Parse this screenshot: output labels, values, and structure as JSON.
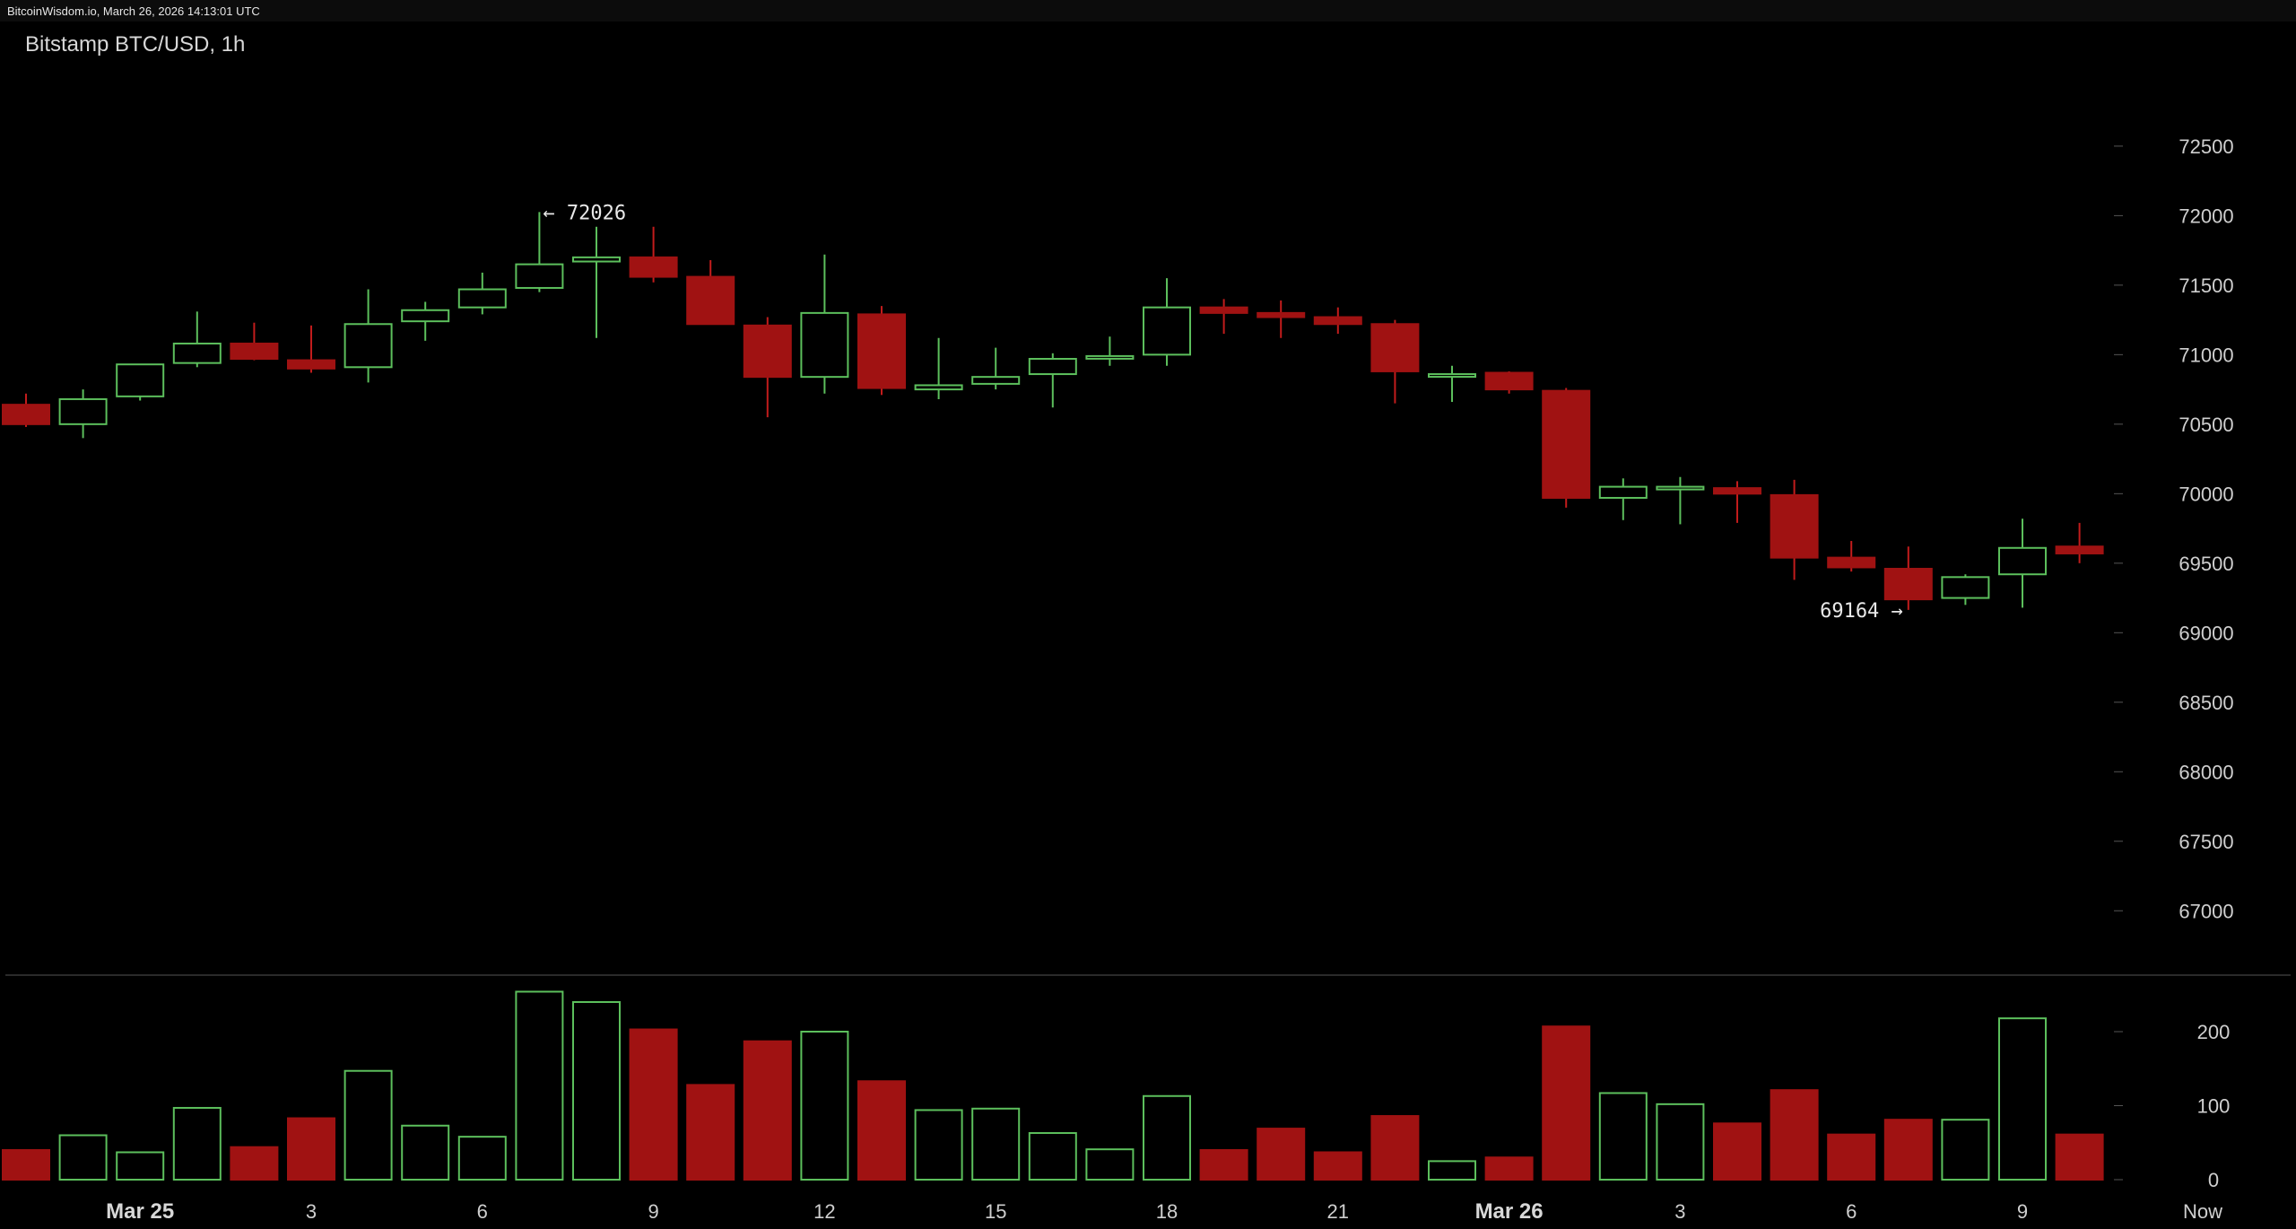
{
  "header": {
    "source_text": "BitcoinWisdom.io, March 26, 2026 14:13:01 UTC"
  },
  "chart_title": "Bitstamp BTC/USD, 1h",
  "annotations": {
    "high_label": "← 72026",
    "low_label": "69164 →"
  },
  "colors": {
    "up": "#5cbf5c",
    "down": "#a01212",
    "down_wick": "#c21c1c",
    "axis_text": "#cfcfcf",
    "divider": "#555555"
  },
  "chart_data": {
    "type": "candlestick",
    "title": "Bitstamp BTC/USD, 1h",
    "price_axis": {
      "ticks": [
        72500,
        72000,
        71500,
        71000,
        70500,
        70000,
        69500,
        69000,
        68500,
        68000,
        67500,
        67000
      ],
      "range": [
        66750,
        72880
      ]
    },
    "volume_axis": {
      "ticks": [
        200,
        100,
        0
      ],
      "range": [
        0,
        250
      ]
    },
    "x_ticks": [
      {
        "index": 2,
        "label": "Mar 25",
        "strong": true
      },
      {
        "index": 5,
        "label": "3"
      },
      {
        "index": 8,
        "label": "6"
      },
      {
        "index": 11,
        "label": "9"
      },
      {
        "index": 14,
        "label": "12"
      },
      {
        "index": 17,
        "label": "15"
      },
      {
        "index": 20,
        "label": "18"
      },
      {
        "index": 23,
        "label": "21"
      },
      {
        "index": 26,
        "label": "Mar 26",
        "strong": true
      },
      {
        "index": 29,
        "label": "3"
      },
      {
        "index": 32,
        "label": "6"
      },
      {
        "index": 35,
        "label": "9"
      },
      {
        "index": 38,
        "label": "Now"
      }
    ],
    "candles": [
      {
        "o": 70640,
        "h": 70720,
        "l": 70480,
        "c": 70500,
        "v": 40
      },
      {
        "o": 70500,
        "h": 70750,
        "l": 70400,
        "c": 70680,
        "v": 60
      },
      {
        "o": 70700,
        "h": 70920,
        "l": 70670,
        "c": 70930,
        "v": 37
      },
      {
        "o": 70940,
        "h": 71310,
        "l": 70910,
        "c": 71080,
        "v": 97
      },
      {
        "o": 71080,
        "h": 71230,
        "l": 70960,
        "c": 70970,
        "v": 44
      },
      {
        "o": 70960,
        "h": 71210,
        "l": 70870,
        "c": 70900,
        "v": 83
      },
      {
        "o": 70910,
        "h": 71470,
        "l": 70800,
        "c": 71220,
        "v": 147
      },
      {
        "o": 71240,
        "h": 71380,
        "l": 71100,
        "c": 71320,
        "v": 73
      },
      {
        "o": 71340,
        "h": 71590,
        "l": 71290,
        "c": 71470,
        "v": 58
      },
      {
        "o": 71480,
        "h": 72026,
        "l": 71450,
        "c": 71650,
        "v": 254
      },
      {
        "o": 71670,
        "h": 71920,
        "l": 71120,
        "c": 71700,
        "v": 240
      },
      {
        "o": 71700,
        "h": 71920,
        "l": 71520,
        "c": 71560,
        "v": 203
      },
      {
        "o": 71560,
        "h": 71680,
        "l": 71220,
        "c": 71220,
        "v": 128
      },
      {
        "o": 71210,
        "h": 71270,
        "l": 70550,
        "c": 70840,
        "v": 187
      },
      {
        "o": 70840,
        "h": 71720,
        "l": 70720,
        "c": 71300,
        "v": 200
      },
      {
        "o": 71290,
        "h": 71350,
        "l": 70710,
        "c": 70760,
        "v": 133
      },
      {
        "o": 70750,
        "h": 71120,
        "l": 70680,
        "c": 70780,
        "v": 94
      },
      {
        "o": 70790,
        "h": 71050,
        "l": 70750,
        "c": 70840,
        "v": 96
      },
      {
        "o": 70860,
        "h": 71010,
        "l": 70620,
        "c": 70970,
        "v": 63
      },
      {
        "o": 70980,
        "h": 71130,
        "l": 70920,
        "c": 70990,
        "v": 41
      },
      {
        "o": 71000,
        "h": 71550,
        "l": 70920,
        "c": 71340,
        "v": 113
      },
      {
        "o": 71340,
        "h": 71400,
        "l": 71150,
        "c": 71300,
        "v": 40
      },
      {
        "o": 71300,
        "h": 71390,
        "l": 71120,
        "c": 71270,
        "v": 69
      },
      {
        "o": 71270,
        "h": 71340,
        "l": 71150,
        "c": 71220,
        "v": 37
      },
      {
        "o": 71220,
        "h": 71250,
        "l": 70650,
        "c": 70880,
        "v": 86
      },
      {
        "o": 70860,
        "h": 70920,
        "l": 70660,
        "c": 70860,
        "v": 25
      },
      {
        "o": 70870,
        "h": 70880,
        "l": 70720,
        "c": 70750,
        "v": 30
      },
      {
        "o": 70740,
        "h": 70760,
        "l": 69900,
        "c": 69970,
        "v": 207
      },
      {
        "o": 69970,
        "h": 70110,
        "l": 69810,
        "c": 70050,
        "v": 117
      },
      {
        "o": 70050,
        "h": 70120,
        "l": 69780,
        "c": 70050,
        "v": 102
      },
      {
        "o": 70040,
        "h": 70090,
        "l": 69790,
        "c": 70000,
        "v": 76
      },
      {
        "o": 69990,
        "h": 70100,
        "l": 69380,
        "c": 69540,
        "v": 121
      },
      {
        "o": 69540,
        "h": 69660,
        "l": 69440,
        "c": 69470,
        "v": 61
      },
      {
        "o": 69460,
        "h": 69620,
        "l": 69164,
        "c": 69240,
        "v": 81
      },
      {
        "o": 69250,
        "h": 69420,
        "l": 69200,
        "c": 69400,
        "v": 81
      },
      {
        "o": 69420,
        "h": 69820,
        "l": 69180,
        "c": 69610,
        "v": 218
      },
      {
        "o": 69620,
        "h": 69790,
        "l": 69500,
        "c": 69570,
        "v": 61
      }
    ]
  }
}
